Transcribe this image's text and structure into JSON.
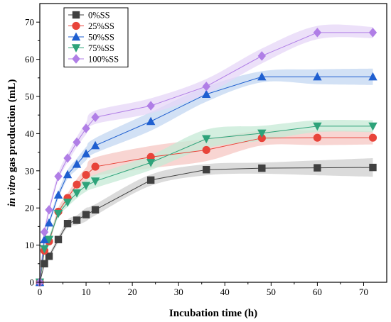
{
  "chart_data": {
    "type": "line",
    "title": "",
    "xlabel": "Incubation time (h)",
    "ylabel_italic": "in vitro",
    "ylabel_rest": " gas production (mL)",
    "xlim": [
      0,
      75
    ],
    "ylim": [
      0,
      75
    ],
    "xticks": [
      0,
      10,
      20,
      30,
      40,
      50,
      60,
      70
    ],
    "yticks": [
      0,
      10,
      20,
      30,
      40,
      50,
      60,
      70
    ],
    "grid": false,
    "legend_position": "top-left",
    "x": [
      0,
      1,
      2,
      4,
      6,
      8,
      10,
      12,
      24,
      36,
      48,
      60,
      72
    ],
    "series": [
      {
        "name": "0%SS",
        "marker": "square",
        "color": "#404040",
        "band": "#cfcfcf",
        "values": [
          0,
          5.0,
          7.0,
          11.5,
          15.8,
          16.7,
          18.2,
          19.5,
          27.5,
          30.3,
          30.7,
          30.8,
          30.9
        ],
        "errors": [
          0,
          0.5,
          0.6,
          0.8,
          1.0,
          1.3,
          1.8,
          1.5,
          1.5,
          1.5,
          1.5,
          2.0,
          2.5
        ]
      },
      {
        "name": "25%SS",
        "marker": "circle",
        "color": "#e8443a",
        "band": "#f6c7c3",
        "values": [
          0,
          8.5,
          11.0,
          19.0,
          22.7,
          26.3,
          28.9,
          31.1,
          33.7,
          35.6,
          38.8,
          38.9,
          38.9
        ],
        "errors": [
          0,
          0.6,
          0.8,
          1.0,
          1.2,
          1.5,
          2.0,
          2.5,
          3.0,
          3.0,
          2.0,
          2.0,
          1.8
        ]
      },
      {
        "name": "50%SS",
        "marker": "triangle-up",
        "color": "#1f5fd0",
        "band": "#c3d7f2",
        "values": [
          0,
          11.5,
          16.0,
          23.5,
          29.0,
          31.8,
          34.6,
          36.8,
          43.3,
          50.6,
          55.3,
          55.3,
          55.3
        ],
        "errors": [
          0,
          0.6,
          0.8,
          1.0,
          1.2,
          1.5,
          1.8,
          2.0,
          2.5,
          2.0,
          1.5,
          2.0,
          2.2
        ]
      },
      {
        "name": "75%SS",
        "marker": "triangle-down",
        "color": "#2ea37a",
        "band": "#c6ead6",
        "values": [
          0,
          9.0,
          11.5,
          18.5,
          21.5,
          24.0,
          26.0,
          27.2,
          32.2,
          38.6,
          40.1,
          42.0,
          42.0
        ],
        "errors": [
          0,
          0.6,
          0.8,
          1.0,
          1.2,
          1.4,
          1.6,
          1.8,
          2.0,
          2.5,
          2.0,
          1.6,
          1.6
        ]
      },
      {
        "name": "100%SS",
        "marker": "diamond",
        "color": "#b07ee6",
        "band": "#e6d5f7",
        "values": [
          0,
          13.5,
          19.5,
          28.5,
          33.4,
          37.7,
          41.4,
          44.4,
          47.5,
          52.7,
          60.9,
          67.2,
          67.2
        ],
        "errors": [
          0,
          0.6,
          0.8,
          1.0,
          1.2,
          1.4,
          1.6,
          1.8,
          2.0,
          2.0,
          2.0,
          1.8,
          1.5
        ]
      }
    ]
  }
}
